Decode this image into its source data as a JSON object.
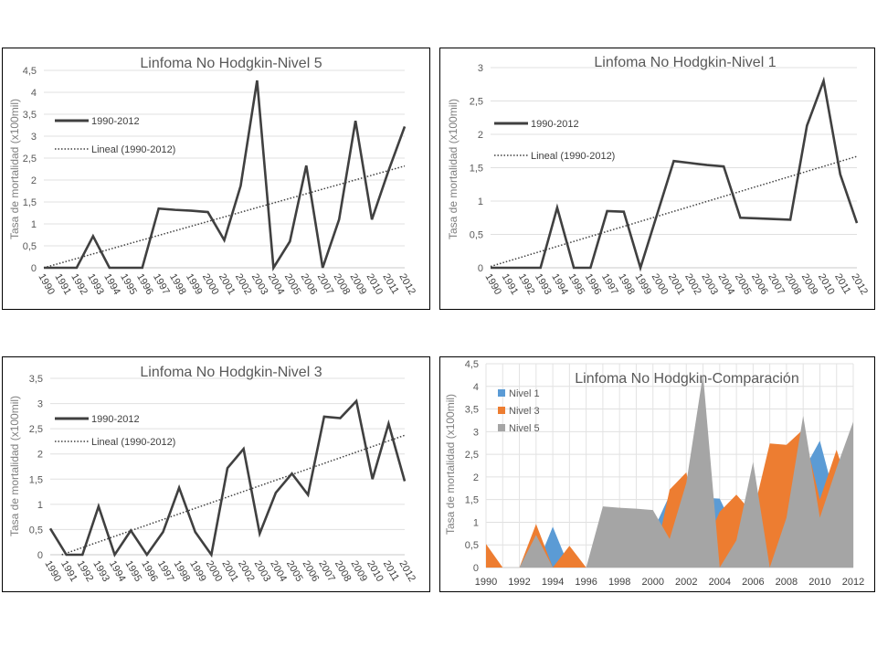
{
  "chart_data": [
    {
      "type": "line",
      "title": "Linfoma No Hodgkin-Nivel 5",
      "ylabel": "Tasa de mortalidad (x100mil)",
      "xlabel": "",
      "ylim": [
        0,
        4.5
      ],
      "yticks": [
        "0",
        "0,5",
        "1",
        "1,5",
        "2",
        "2,5",
        "3",
        "3,5",
        "4",
        "4,5"
      ],
      "grid": true,
      "legend": "left",
      "categories": [
        "1990",
        "1991",
        "1992",
        "1993",
        "1994",
        "1995",
        "1996",
        "1997",
        "1998",
        "1999",
        "2000",
        "2001",
        "2002",
        "2003",
        "2004",
        "2005",
        "2006",
        "2007",
        "2008",
        "2009",
        "2010",
        "2011",
        "2012"
      ],
      "series": [
        {
          "name": "1990-2012",
          "style": "solid",
          "values": [
            0,
            0,
            0,
            0.72,
            0,
            0,
            0,
            1.35,
            1.32,
            1.3,
            1.27,
            0.63,
            1.87,
            4.27,
            0,
            0.6,
            2.33,
            0,
            1.1,
            3.35,
            1.1,
            2.2,
            3.22
          ]
        },
        {
          "name": "Lineal (1990-2012)",
          "style": "dotted",
          "trend": [
            0,
            2.32
          ]
        }
      ]
    },
    {
      "type": "line",
      "title": "Linfoma No Hodgkin-Nivel 1",
      "ylabel": "Tasa de mortalidad (x100mil)",
      "xlabel": "",
      "ylim": [
        0,
        3
      ],
      "yticks": [
        "0",
        "0,5",
        "1",
        "1,5",
        "2",
        "2,5",
        "3"
      ],
      "grid": true,
      "legend": "left",
      "categories": [
        "1990",
        "1991",
        "1992",
        "1993",
        "1994",
        "1995",
        "1996",
        "1997",
        "1998",
        "1999",
        "2000",
        "2001",
        "2002",
        "2003",
        "2004",
        "2005",
        "2006",
        "2007",
        "2008",
        "2009",
        "2010",
        "2011",
        "2012"
      ],
      "series": [
        {
          "name": "1990-2012",
          "style": "solid",
          "values": [
            0,
            0,
            0,
            0,
            0.9,
            0,
            0,
            0.85,
            0.84,
            0,
            0.8,
            1.6,
            1.57,
            1.54,
            1.52,
            0.75,
            0.74,
            0.73,
            0.72,
            2.13,
            2.8,
            1.4,
            0.67
          ]
        },
        {
          "name": "Lineal (1990-2012)",
          "style": "dotted",
          "trend": [
            0.02,
            1.67
          ]
        }
      ]
    },
    {
      "type": "line",
      "title": "Linfoma No Hodgkin-Nivel 3",
      "ylabel": "Tasa de mortalidad (x100mil)",
      "xlabel": "",
      "ylim": [
        0,
        3.5
      ],
      "yticks": [
        "0",
        "0,5",
        "1",
        "1,5",
        "2",
        "2,5",
        "3",
        "3,5"
      ],
      "grid": true,
      "legend": "left",
      "categories": [
        "1990",
        "1991",
        "1992",
        "1993",
        "1994",
        "1995",
        "1996",
        "1997",
        "1998",
        "1999",
        "2000",
        "2001",
        "2002",
        "2003",
        "2004",
        "2005",
        "2006",
        "2007",
        "2008",
        "2009",
        "2010",
        "2011",
        "2012"
      ],
      "series": [
        {
          "name": "1990-2012",
          "style": "solid",
          "values": [
            0.52,
            0,
            0,
            0.96,
            0,
            0.48,
            0,
            0.45,
            1.33,
            0.45,
            0,
            1.72,
            2.1,
            0.42,
            1.23,
            1.61,
            1.19,
            2.74,
            2.71,
            3.05,
            1.5,
            2.6,
            1.46
          ]
        },
        {
          "name": "Lineal (1990-2012)",
          "style": "dotted",
          "trend": [
            -0.08,
            2.37
          ]
        }
      ]
    },
    {
      "type": "area",
      "title": "Linfoma No Hodgkin-Comparación",
      "ylabel": "Tasa de mortalidad (x100mil)",
      "xlabel": "",
      "ylim": [
        0,
        4.5
      ],
      "yticks": [
        "0",
        "0,5",
        "1",
        "1,5",
        "2",
        "2,5",
        "3",
        "3,5",
        "4",
        "4,5"
      ],
      "xticks": [
        "1990",
        "1992",
        "1994",
        "1996",
        "1998",
        "2000",
        "2002",
        "2004",
        "2006",
        "2008",
        "2010",
        "2012"
      ],
      "grid": true,
      "legend": "top-left",
      "categories": [
        "1990",
        "1991",
        "1992",
        "1993",
        "1994",
        "1995",
        "1996",
        "1997",
        "1998",
        "1999",
        "2000",
        "2001",
        "2002",
        "2003",
        "2004",
        "2005",
        "2006",
        "2007",
        "2008",
        "2009",
        "2010",
        "2011",
        "2012"
      ],
      "series": [
        {
          "name": "Nivel 1",
          "color": "#5B9BD5",
          "values": [
            0,
            0,
            0,
            0,
            0.9,
            0,
            0,
            0.85,
            0.84,
            0,
            0.8,
            1.6,
            1.57,
            1.54,
            1.52,
            0.75,
            0.74,
            0.73,
            0.72,
            2.13,
            2.8,
            1.4,
            0.67
          ]
        },
        {
          "name": "Nivel 3",
          "color": "#ED7D31",
          "values": [
            0.52,
            0,
            0,
            0.96,
            0,
            0.48,
            0,
            0.45,
            1.33,
            0.45,
            0,
            1.72,
            2.1,
            0.42,
            1.23,
            1.61,
            1.19,
            2.74,
            2.71,
            3.05,
            1.5,
            2.6,
            1.46
          ]
        },
        {
          "name": "Nivel 5",
          "color": "#A5A5A5",
          "values": [
            0,
            0,
            0,
            0.72,
            0,
            0,
            0,
            1.35,
            1.32,
            1.3,
            1.27,
            0.63,
            1.87,
            4.27,
            0,
            0.6,
            2.33,
            0,
            1.1,
            3.35,
            1.1,
            2.2,
            3.22
          ]
        }
      ]
    }
  ]
}
